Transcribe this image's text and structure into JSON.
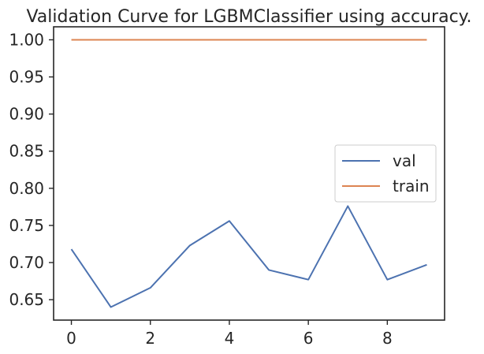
{
  "chart_data": {
    "type": "line",
    "title": "Validation Curve for LGBMClassifier using accuracy.",
    "xlabel": "",
    "ylabel": "",
    "x": [
      0,
      1,
      2,
      3,
      4,
      5,
      6,
      7,
      8,
      9
    ],
    "xlim": [
      -0.45,
      9.45
    ],
    "ylim": [
      0.6225,
      1.0175
    ],
    "x_ticks": [
      0,
      2,
      4,
      6,
      8
    ],
    "y_ticks": [
      0.65,
      0.7,
      0.75,
      0.8,
      0.85,
      0.9,
      0.95,
      1.0
    ],
    "x_tick_labels": [
      "0",
      "2",
      "4",
      "6",
      "8"
    ],
    "y_tick_labels": [
      "0.65",
      "0.70",
      "0.75",
      "0.80",
      "0.85",
      "0.90",
      "0.95",
      "1.00"
    ],
    "grid": false,
    "legend_position": "center-right",
    "series": [
      {
        "name": "val",
        "color": "#4c72b0",
        "values": [
          0.718,
          0.64,
          0.666,
          0.723,
          0.756,
          0.69,
          0.677,
          0.776,
          0.677,
          0.697
        ]
      },
      {
        "name": "train",
        "color": "#dd8452",
        "values": [
          1.0,
          1.0,
          1.0,
          1.0,
          1.0,
          1.0,
          1.0,
          1.0,
          1.0,
          1.0
        ]
      }
    ]
  }
}
